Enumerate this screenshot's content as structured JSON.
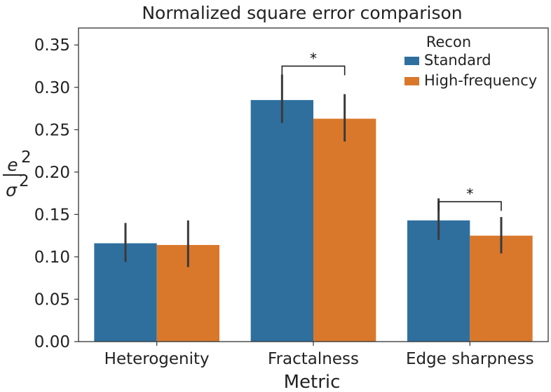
{
  "chart_data": {
    "type": "bar",
    "title": "Normalized square error comparison",
    "xlabel": "Metric",
    "ylabel": {
      "numerator": "e",
      "denominator": "σ",
      "exponent": "2"
    },
    "ylim": [
      0,
      0.37
    ],
    "yticks": [
      "0.00",
      "0.05",
      "0.10",
      "0.15",
      "0.20",
      "0.25",
      "0.30",
      "0.35"
    ],
    "categories": [
      "Heterogenity",
      "Fractalness",
      "Edge sharpness"
    ],
    "legend": {
      "title": "Recon",
      "position": "top-right"
    },
    "series": [
      {
        "name": "Standard",
        "color": "#2e6f9e",
        "values": [
          0.116,
          0.285,
          0.143
        ],
        "err_low": [
          0.094,
          0.258,
          0.12
        ],
        "err_high": [
          0.14,
          0.315,
          0.169
        ]
      },
      {
        "name": "High-frequency",
        "color": "#d9782b",
        "values": [
          0.114,
          0.263,
          0.125
        ],
        "err_low": [
          0.088,
          0.236,
          0.104
        ],
        "err_high": [
          0.143,
          0.292,
          0.147
        ]
      }
    ],
    "annotations": [
      {
        "category_index": 1,
        "label": "*",
        "y": 0.325
      },
      {
        "category_index": 2,
        "label": "*",
        "y": 0.165
      }
    ]
  }
}
